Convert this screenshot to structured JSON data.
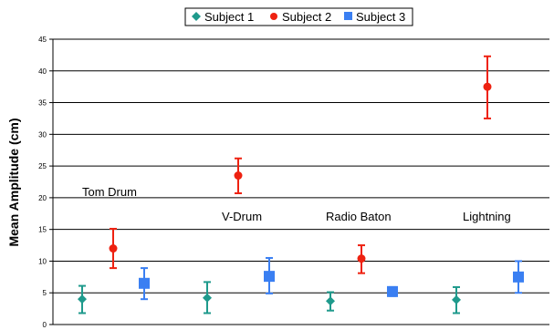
{
  "chart_data": {
    "type": "scatter",
    "ylabel": "Mean Amplitude (cm)",
    "xlabel": "",
    "ylim": [
      0,
      45
    ],
    "yticks": [
      0,
      5,
      10,
      15,
      20,
      25,
      30,
      35,
      40,
      45
    ],
    "grid": "horizontal",
    "legend_position": "top",
    "categories": [
      "Tom Drum",
      "V-Drum",
      "Radio Baton",
      "Lightning"
    ],
    "series": [
      {
        "name": "Subject 1",
        "color": "#1f9a8c",
        "marker": "diamond",
        "values": [
          4.0,
          4.2,
          3.7,
          3.9
        ],
        "err_low": [
          1.8,
          1.8,
          2.2,
          1.8
        ],
        "err_high": [
          6.1,
          6.7,
          5.1,
          5.9
        ]
      },
      {
        "name": "Subject 2",
        "color": "#ee2211",
        "marker": "circle",
        "values": [
          12.0,
          23.5,
          10.4,
          37.5
        ],
        "err_low": [
          8.9,
          20.7,
          8.1,
          32.5
        ],
        "err_high": [
          15.1,
          26.2,
          12.5,
          42.3
        ]
      },
      {
        "name": "Subject 3",
        "color": "#3a7ff2",
        "marker": "square",
        "values": [
          6.5,
          7.6,
          5.2,
          7.5
        ],
        "err_low": [
          4.0,
          4.9,
          4.5,
          5.0
        ],
        "err_high": [
          8.9,
          10.5,
          5.9,
          10.0
        ]
      }
    ],
    "group_labels": [
      "Tom Drum",
      "V-Drum",
      "Radio Baton",
      "Lightning"
    ]
  }
}
